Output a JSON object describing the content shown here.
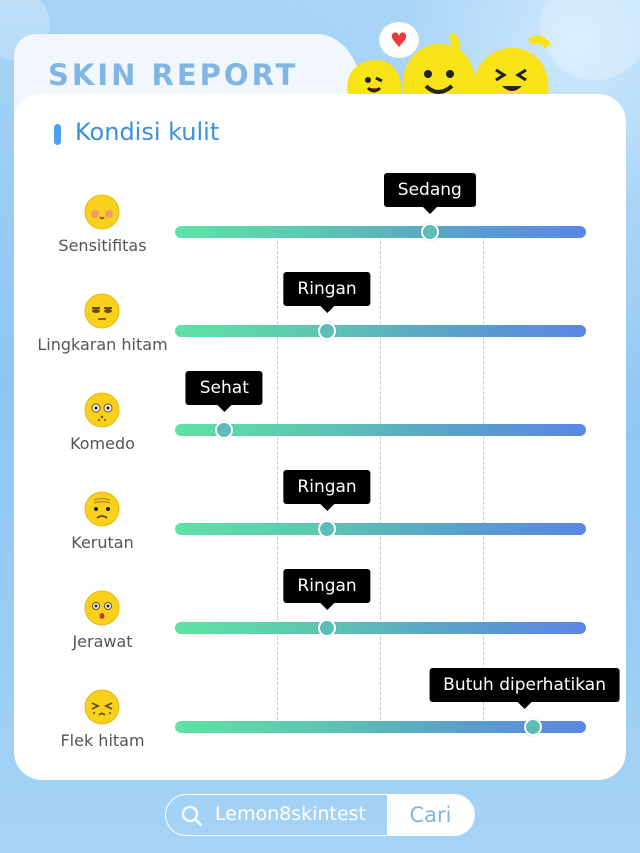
{
  "header": {
    "title": "SKIN REPORT"
  },
  "section": {
    "title": "Kondisi kulit"
  },
  "colors": {
    "accent": "#3b8fdb",
    "track_start": "#5ee3a3",
    "track_end": "#5a86e6",
    "tooltip_bg": "#000000",
    "mascot": "#f7e316"
  },
  "metrics": [
    {
      "label": "Sensitifitas",
      "level": "Sedang",
      "level_fraction": 0.62,
      "icon": "blushing-face-icon"
    },
    {
      "label": "Lingkaran hitam",
      "level": "Ringan",
      "level_fraction": 0.37,
      "icon": "tired-face-icon"
    },
    {
      "label": "Komedo",
      "level": "Sehat",
      "level_fraction": 0.12,
      "icon": "spotted-face-icon"
    },
    {
      "label": "Kerutan",
      "level": "Ringan",
      "level_fraction": 0.37,
      "icon": "wrinkled-face-icon"
    },
    {
      "label": "Jerawat",
      "level": "Ringan",
      "level_fraction": 0.37,
      "icon": "surprised-face-icon"
    },
    {
      "label": "Flek hitam",
      "level": "Butuh diperhatikan",
      "level_fraction": 0.87,
      "icon": "squinting-face-icon"
    }
  ],
  "search": {
    "query": "Lemon8skintest",
    "button_label": "Cari",
    "icon": "search-icon"
  },
  "mascots": {
    "icon": "lemon-mascots-icon",
    "heart_icon": "heart-icon"
  }
}
